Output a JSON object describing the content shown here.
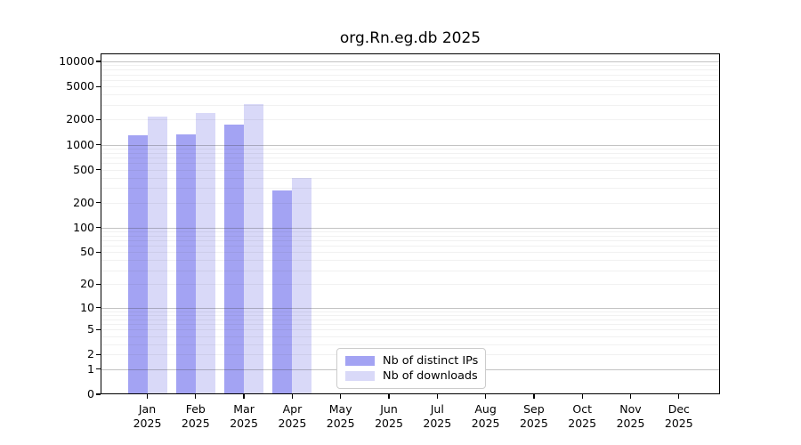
{
  "chart_data": {
    "type": "bar",
    "title": "org.Rn.eg.db 2025",
    "y_scale": "log10(1+x)",
    "ylim": [
      0,
      12000
    ],
    "y_ticks": [
      0,
      1,
      2,
      5,
      10,
      20,
      50,
      100,
      200,
      500,
      1000,
      2000,
      5000,
      10000
    ],
    "categories": [
      "Jan 2025",
      "Feb 2025",
      "Mar 2025",
      "Apr 2025",
      "May 2025",
      "Jun 2025",
      "Jul 2025",
      "Aug 2025",
      "Sep 2025",
      "Oct 2025",
      "Nov 2025",
      "Dec 2025"
    ],
    "series": [
      {
        "name": "Nb of distinct IPs",
        "color": "#a3a3f3",
        "values": [
          1300,
          1330,
          1750,
          280,
          null,
          null,
          null,
          null,
          null,
          null,
          null,
          null
        ]
      },
      {
        "name": "Nb of downloads",
        "color": "#d9d9f8",
        "values": [
          2150,
          2370,
          3050,
          400,
          null,
          null,
          null,
          null,
          null,
          null,
          null,
          null
        ]
      }
    ],
    "grid": "horizontal major+minor",
    "legend_position": "lower center"
  },
  "colors": {
    "background": "#ffffff",
    "axis": "#000000",
    "major_grid": "#c0c0c0",
    "minor_grid": "#f1f1f1",
    "legend_border": "#cccccc"
  }
}
